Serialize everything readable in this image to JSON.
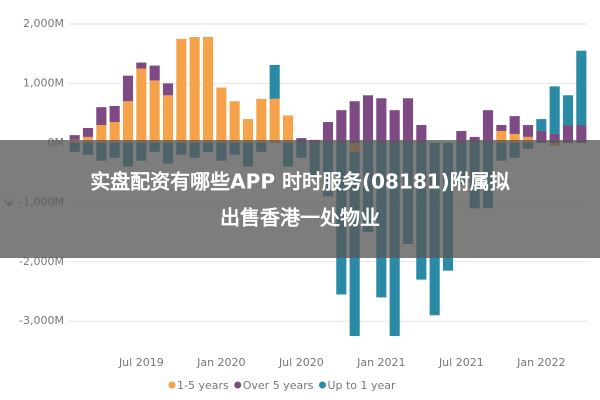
{
  "chart_data": {
    "type": "bar",
    "stacked": true,
    "ylabel": "€",
    "categories": [
      "",
      null,
      null,
      null,
      null,
      "Jul 2019",
      null,
      null,
      null,
      null,
      null,
      "Jan 2020",
      null,
      null,
      null,
      null,
      null,
      "Jul 2020",
      null,
      null,
      null,
      null,
      null,
      "Jan 2021",
      null,
      null,
      null,
      null,
      null,
      "Jul 2021",
      null,
      null,
      null,
      null,
      null,
      "Jan 2022",
      null,
      null,
      null
    ],
    "series": [
      {
        "name": "1-5 years",
        "color": "#f5a34a",
        "values": [
          50,
          100,
          300,
          350,
          700,
          1250,
          1050,
          800,
          1750,
          1780,
          1780,
          930,
          700,
          400,
          740,
          740,
          460,
          0,
          0,
          0,
          0,
          -150,
          0,
          0,
          0,
          0,
          0,
          0,
          0,
          0,
          0,
          0,
          200,
          150,
          100,
          0,
          -50,
          0,
          0
        ]
      },
      {
        "name": "Over 5 years",
        "color": "#7e4a84",
        "values": [
          80,
          150,
          300,
          270,
          430,
          100,
          250,
          200,
          0,
          0,
          0,
          0,
          0,
          0,
          0,
          0,
          0,
          80,
          50,
          350,
          550,
          700,
          800,
          750,
          550,
          750,
          300,
          0,
          0,
          200,
          100,
          550,
          100,
          300,
          200,
          200,
          150,
          300,
          300
        ]
      },
      {
        "name": "Up to 1 year",
        "color": "#2b8ba6",
        "values": [
          -150,
          -200,
          -300,
          -250,
          -400,
          -300,
          -150,
          -350,
          -200,
          -250,
          -150,
          -300,
          -200,
          -400,
          -150,
          570,
          -400,
          -250,
          -600,
          -900,
          -2550,
          -3100,
          -1500,
          -2600,
          -3250,
          -1700,
          -2300,
          -2900,
          -2150,
          -700,
          -1100,
          -1100,
          -300,
          -250,
          -100,
          200,
          800,
          500,
          1250
        ]
      }
    ],
    "ylim": [
      -3400,
      2100
    ],
    "yticks": [
      {
        "value": -3000,
        "label": "-3,000M"
      },
      {
        "value": -2000,
        "label": "-2,000M"
      },
      {
        "value": -1000,
        "label": "-1,000M"
      },
      {
        "value": 0,
        "label": "0M"
      },
      {
        "value": 1000,
        "label": "1,000M"
      },
      {
        "value": 2000,
        "label": "2,000M"
      }
    ],
    "grid": true
  },
  "headline": [
    "实盘配资有哪些APP 时时服务(08181)附属拟",
    "出售香港一处物业"
  ]
}
